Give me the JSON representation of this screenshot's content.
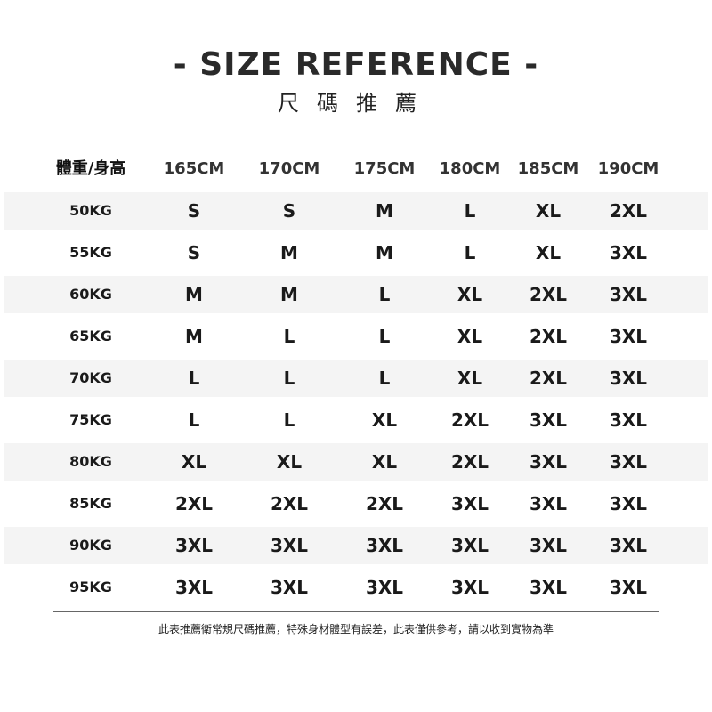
{
  "title": "- SIZE REFERENCE -",
  "subtitle": "尺碼推薦",
  "table": {
    "corner": "體重/身高",
    "heights": [
      "165CM",
      "170CM",
      "175CM",
      "180CM",
      "185CM",
      "190CM"
    ],
    "rows": [
      {
        "weight": "50KG",
        "sizes": [
          "S",
          "S",
          "M",
          "L",
          "XL",
          "2XL"
        ]
      },
      {
        "weight": "55KG",
        "sizes": [
          "S",
          "M",
          "M",
          "L",
          "XL",
          "3XL"
        ]
      },
      {
        "weight": "60KG",
        "sizes": [
          "M",
          "M",
          "L",
          "XL",
          "2XL",
          "3XL"
        ]
      },
      {
        "weight": "65KG",
        "sizes": [
          "M",
          "L",
          "L",
          "XL",
          "2XL",
          "3XL"
        ]
      },
      {
        "weight": "70KG",
        "sizes": [
          "L",
          "L",
          "L",
          "XL",
          "2XL",
          "3XL"
        ]
      },
      {
        "weight": "75KG",
        "sizes": [
          "L",
          "L",
          "XL",
          "2XL",
          "3XL",
          "3XL"
        ]
      },
      {
        "weight": "80KG",
        "sizes": [
          "XL",
          "XL",
          "XL",
          "2XL",
          "3XL",
          "3XL"
        ]
      },
      {
        "weight": "85KG",
        "sizes": [
          "2XL",
          "2XL",
          "2XL",
          "3XL",
          "3XL",
          "3XL"
        ]
      },
      {
        "weight": "90KG",
        "sizes": [
          "3XL",
          "3XL",
          "3XL",
          "3XL",
          "3XL",
          "3XL"
        ]
      },
      {
        "weight": "95KG",
        "sizes": [
          "3XL",
          "3XL",
          "3XL",
          "3XL",
          "3XL",
          "3XL"
        ]
      }
    ]
  },
  "note": "此表推薦衛常規尺碼推薦，特殊身材體型有誤差，此表僅供參考，請以收到實物為準"
}
